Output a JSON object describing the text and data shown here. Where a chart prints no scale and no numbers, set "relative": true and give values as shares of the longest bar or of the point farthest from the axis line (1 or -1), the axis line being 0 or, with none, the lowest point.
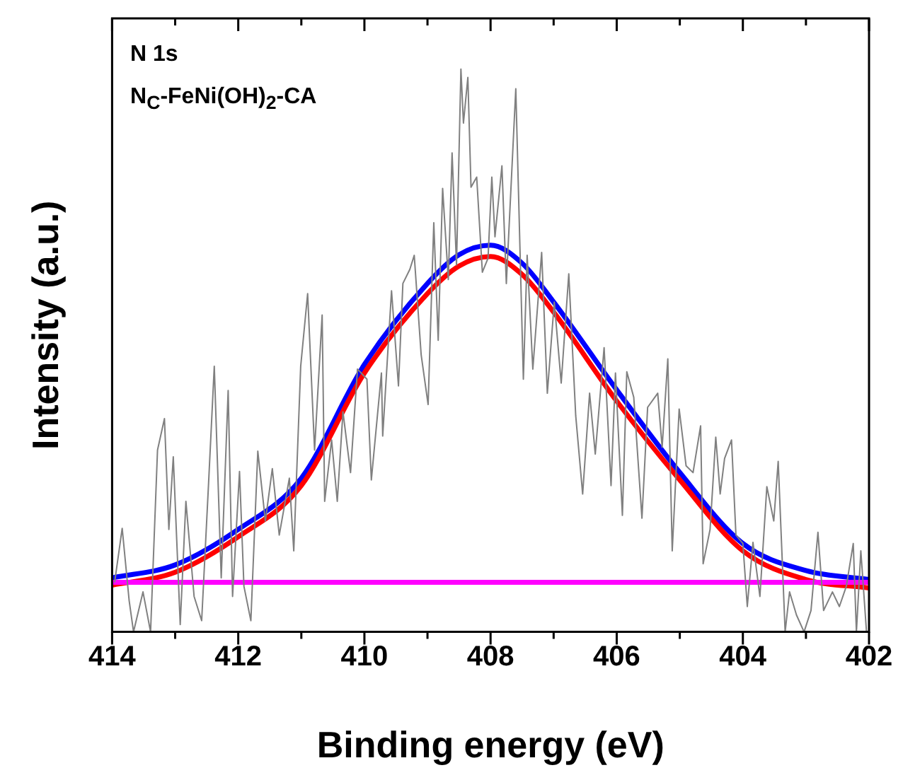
{
  "chart_data": {
    "type": "line",
    "xlabel": "Binding energy (eV)",
    "ylabel": "Intensity (a.u.)",
    "annotations": [
      "N 1s",
      "N$_{C}$-FeNi(OH)$_{2}$-CA"
    ],
    "relative": true,
    "tick_labels": "x",
    "xlim": [
      414,
      402
    ],
    "xticks": [
      414,
      {
        "value": 413,
        "label": null
      },
      412,
      {
        "value": 411,
        "label": null
      },
      410,
      {
        "value": 409,
        "label": null
      },
      408,
      {
        "value": 407,
        "label": null
      },
      406,
      {
        "value": 405,
        "label": null
      },
      404,
      {
        "value": 403,
        "label": null
      },
      402
    ],
    "marker": "none",
    "series": [
      {
        "color": "#808080",
        "x": [
          413.96,
          413.84,
          413.73,
          413.66,
          413.51,
          413.39,
          413.28,
          413.17,
          413.1,
          413.03,
          412.92,
          412.83,
          412.7,
          412.58,
          412.47,
          412.38,
          412.27,
          412.16,
          412.09,
          411.98,
          411.91,
          411.8,
          411.69,
          411.57,
          411.46,
          411.35,
          411.19,
          411.12,
          411.01,
          410.9,
          410.79,
          410.67,
          410.63,
          410.52,
          410.43,
          410.34,
          410.22,
          410.11,
          409.96,
          409.89,
          409.73,
          409.71,
          409.57,
          409.46,
          409.39,
          409.28,
          409.21,
          409.1,
          408.99,
          408.9,
          408.83,
          408.76,
          408.67,
          408.61,
          408.54,
          408.47,
          408.43,
          408.36,
          408.31,
          408.22,
          408.13,
          408.04,
          407.98,
          407.93,
          407.82,
          407.75,
          407.6,
          407.48,
          407.42,
          407.33,
          407.19,
          407.1,
          406.99,
          406.88,
          406.76,
          406.65,
          406.54,
          406.43,
          406.34,
          406.2,
          406.09,
          406.02,
          405.91,
          405.84,
          405.73,
          405.6,
          405.51,
          405.35,
          405.28,
          405.19,
          405.12,
          405.01,
          404.9,
          404.79,
          404.67,
          404.63,
          404.52,
          404.43,
          404.36,
          404.29,
          404.18,
          404.11,
          404.0,
          403.93,
          403.84,
          403.73,
          403.62,
          403.51,
          403.44,
          403.33,
          403.26,
          403.15,
          403.03,
          402.92,
          402.81,
          402.72,
          402.58,
          402.47,
          402.36,
          402.25,
          402.2,
          402.13,
          402.04
        ],
        "values": [
          0.088,
          0.184,
          0.056,
          0,
          0.071,
          0,
          0.323,
          0.379,
          0.182,
          0.311,
          0.013,
          0.232,
          0.063,
          0.02,
          0.265,
          0.472,
          0.096,
          0.429,
          0.063,
          0.285,
          0.081,
          0.02,
          0.321,
          0.197,
          0.29,
          0.172,
          0.273,
          0.144,
          0.472,
          0.601,
          0.323,
          0.563,
          0.232,
          0.341,
          0.232,
          0.391,
          0.283,
          0.467,
          0.449,
          0.27,
          0.46,
          0.348,
          0.606,
          0.437,
          0.619,
          0.644,
          0.669,
          0.492,
          0.404,
          0.727,
          0.518,
          0.788,
          0.626,
          0.851,
          0.652,
          1.0,
          0.904,
          0.985,
          0.79,
          0.808,
          0.639,
          0.664,
          0.808,
          0.702,
          0.828,
          0.619,
          0.965,
          0.449,
          0.669,
          0.467,
          0.674,
          0.424,
          0.586,
          0.442,
          0.636,
          0.384,
          0.245,
          0.424,
          0.316,
          0.505,
          0.26,
          0.46,
          0.207,
          0.462,
          0.417,
          0.202,
          0.399,
          0.424,
          0.328,
          0.485,
          0.144,
          0.396,
          0.295,
          0.283,
          0.366,
          0.121,
          0.182,
          0.346,
          0.245,
          0.308,
          0.341,
          0.172,
          0.157,
          0.045,
          0.159,
          0.063,
          0.258,
          0.197,
          0.303,
          0,
          0.071,
          0.03,
          0,
          0.038,
          0.177,
          0.038,
          0.071,
          0.045,
          0.081,
          0.157,
          0,
          0.144,
          0
        ]
      },
      {
        "color": "#ff00ff",
        "x": [
          414,
          402
        ],
        "values": [
          0.088,
          0.088
        ]
      },
      {
        "color": "#ff0000",
        "x": [
          414,
          413,
          412,
          411,
          410,
          409,
          408.5,
          408,
          407.5,
          407,
          406,
          405,
          404,
          403,
          402
        ],
        "values": [
          0.083,
          0.106,
          0.169,
          0.26,
          0.46,
          0.601,
          0.65,
          0.667,
          0.635,
          0.568,
          0.41,
          0.27,
          0.144,
          0.093,
          0.078
        ]
      },
      {
        "color": "#0000ff",
        "x": [
          414,
          413,
          412,
          411,
          410,
          409,
          408.5,
          408,
          407.5,
          407,
          406,
          405,
          404,
          403,
          402
        ],
        "values": [
          0.096,
          0.119,
          0.182,
          0.273,
          0.475,
          0.619,
          0.67,
          0.687,
          0.655,
          0.586,
          0.43,
          0.283,
          0.157,
          0.109,
          0.093
        ]
      }
    ]
  }
}
